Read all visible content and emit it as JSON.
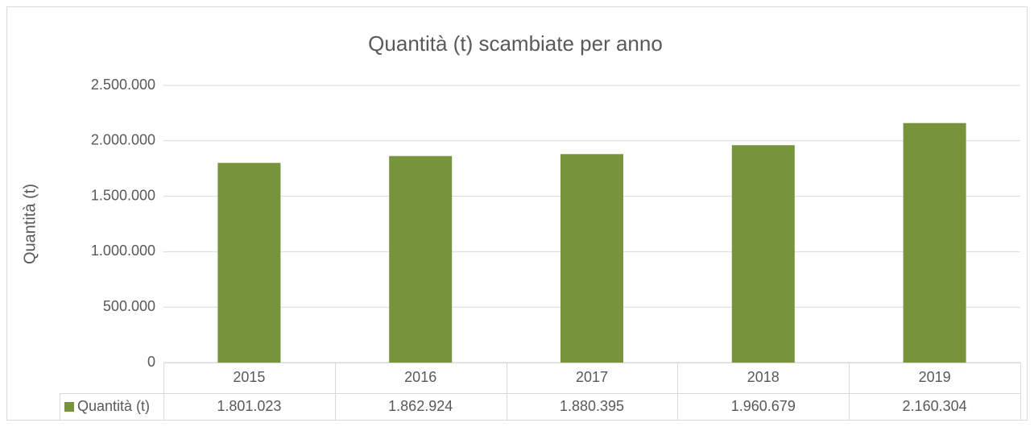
{
  "chart_data": {
    "type": "bar",
    "title": "Quantità (t) scambiate per anno",
    "y_label": "Quantità (t)",
    "categories": [
      "2015",
      "2016",
      "2017",
      "2018",
      "2019"
    ],
    "series": [
      {
        "name": "Quantità (t)",
        "color": "#77933c",
        "values": [
          1801023,
          1862924,
          1880395,
          1960679,
          2160304
        ],
        "value_labels": [
          "1.801.023",
          "1.862.924",
          "1.880.395",
          "1.960.679",
          "2.160.304"
        ]
      }
    ],
    "ylim": [
      0,
      2500000
    ],
    "yticks": [
      0,
      {
        "value": 500000,
        "label": "500.000"
      },
      {
        "value": 1000000,
        "label": "1.000.000"
      },
      {
        "value": 1500000,
        "label": "1.500.000"
      },
      {
        "value": 2000000,
        "label": "2.000.000"
      },
      {
        "value": 2500000,
        "label": "2.500.000"
      }
    ],
    "grid": true,
    "data_table": true
  }
}
